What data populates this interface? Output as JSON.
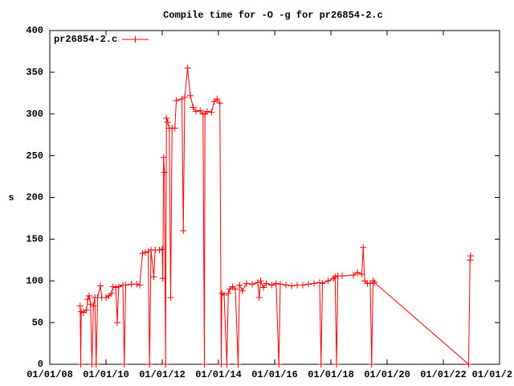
{
  "chart_data": {
    "type": "line",
    "title": "Compile time for -O -g for pr26854-2.c",
    "ylabel": "s",
    "x": [
      2009.08,
      2009.1,
      2009.12,
      2009.2,
      2009.3,
      2009.35,
      2009.4,
      2009.45,
      2009.5,
      2009.55,
      2009.6,
      2009.65,
      2009.7,
      2009.8,
      2009.85,
      2010.0,
      2010.1,
      2010.2,
      2010.25,
      2010.35,
      2010.4,
      2010.45,
      2010.6,
      2010.65,
      2010.7,
      2010.9,
      2011.1,
      2011.2,
      2011.3,
      2011.4,
      2011.5,
      2011.55,
      2011.6,
      2011.7,
      2011.75,
      2011.9,
      2012.0,
      2012.02,
      2012.05,
      2012.08,
      2012.12,
      2012.15,
      2012.2,
      2012.25,
      2012.3,
      2012.35,
      2012.45,
      2012.5,
      2012.7,
      2012.75,
      2012.8,
      2012.9,
      2013.0,
      2013.1,
      2013.2,
      2013.35,
      2013.45,
      2013.5,
      2013.52,
      2013.6,
      2013.75,
      2013.85,
      2013.95,
      2014.05,
      2014.1,
      2014.12,
      2014.2,
      2014.3,
      2014.35,
      2014.4,
      2014.5,
      2014.6,
      2014.7,
      2014.75,
      2014.85,
      2015.0,
      2015.2,
      2015.4,
      2015.45,
      2015.5,
      2015.6,
      2015.7,
      2015.9,
      2016.05,
      2016.15,
      2016.2,
      2016.4,
      2016.6,
      2016.8,
      2017.0,
      2017.2,
      2017.4,
      2017.6,
      2017.65,
      2017.7,
      2017.9,
      2018.1,
      2018.15,
      2018.2,
      2018.25,
      2018.4,
      2018.8,
      2018.95,
      2019.1,
      2019.15,
      2019.2,
      2019.3,
      2019.4,
      2019.45,
      2019.5,
      2019.55,
      2022.9,
      2022.95,
      2022.97
    ],
    "series": [
      {
        "name": "pr26854-2.c",
        "color": "#ff0000",
        "values": [
          70,
          0,
          63,
          62,
          65,
          78,
          82,
          72,
          0,
          70,
          80,
          0,
          80,
          94,
          80,
          80,
          82,
          85,
          93,
          92,
          50,
          93,
          95,
          0,
          95,
          96,
          96,
          95,
          133,
          134,
          135,
          0,
          137,
          105,
          137,
          137,
          138,
          103,
          248,
          230,
          0,
          295,
          290,
          283,
          80,
          283,
          283,
          316,
          318,
          160,
          320,
          355,
          322,
          308,
          303,
          304,
          300,
          0,
          300,
          303,
          302,
          315,
          318,
          313,
          0,
          85,
          83,
          0,
          85,
          90,
          93,
          90,
          0,
          95,
          88,
          97,
          96,
          98,
          80,
          100,
          92,
          97,
          95,
          97,
          0,
          96,
          95,
          94,
          95,
          95,
          96,
          97,
          98,
          0,
          97,
          100,
          103,
          105,
          0,
          106,
          106,
          107,
          110,
          108,
          140,
          100,
          97,
          97,
          0,
          100,
          98,
          0,
          125,
          130
        ]
      }
    ],
    "xlim": [
      2008,
      2024
    ],
    "xticks": [
      {
        "value": 2008,
        "label": "01/01/08"
      },
      {
        "value": 2010,
        "label": "01/01/10"
      },
      {
        "value": 2012,
        "label": "01/01/12"
      },
      {
        "value": 2014,
        "label": "01/01/14"
      },
      {
        "value": 2016,
        "label": "01/01/16"
      },
      {
        "value": 2018,
        "label": "01/01/18"
      },
      {
        "value": 2020,
        "label": "01/01/20"
      },
      {
        "value": 2022,
        "label": "01/01/22"
      },
      {
        "value": 2024,
        "label": "01/01/2"
      }
    ],
    "ylim": [
      0,
      400
    ],
    "yticks": [
      0,
      50,
      100,
      150,
      200,
      250,
      300,
      350,
      400
    ],
    "legend": "top-left"
  }
}
